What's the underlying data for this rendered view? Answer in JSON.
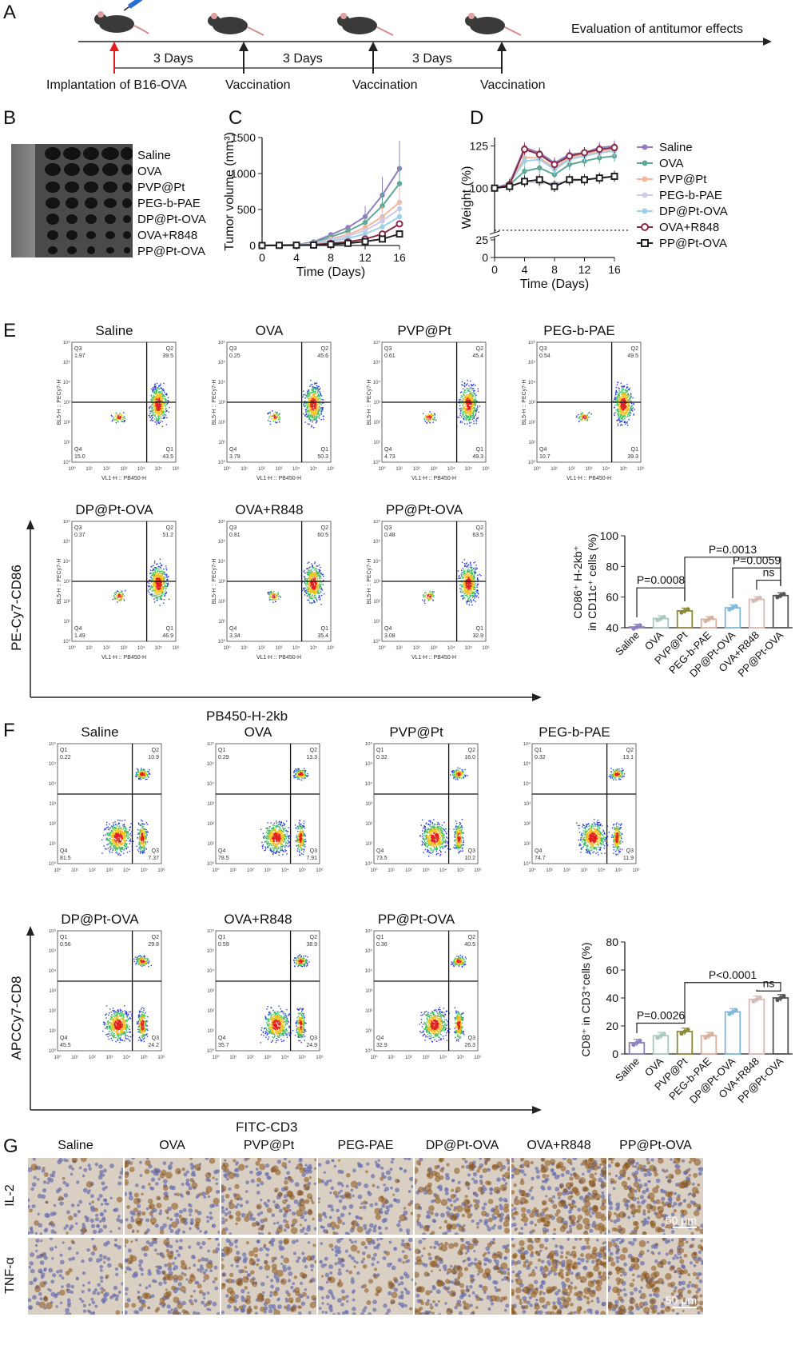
{
  "panels": {
    "A": {
      "label": "A",
      "timeline": {
        "intervals": [
          "3 Days",
          "3 Days",
          "3 Days"
        ],
        "events": [
          "Implantation of B16-OVA",
          "Vaccination",
          "Vaccination",
          "Vaccination"
        ],
        "end_label": "Evaluation of antitumor effects"
      }
    },
    "B": {
      "label": "B",
      "groups": [
        "Saline",
        "OVA",
        "PVP@Pt",
        "PEG-b-PAE",
        "DP@Pt-OVA",
        "OVA+R848",
        "PP@Pt-OVA"
      ]
    },
    "C": {
      "label": "C"
    },
    "D": {
      "label": "D"
    },
    "E": {
      "label": "E",
      "ylabel": "PE-Cy7-CD86",
      "xlabel": "PB450-H-2kb",
      "plot_x_axis": "VL1-H :: PB450-H",
      "plot_y_axis": "BL5-H :: PECy7-H",
      "plots": [
        {
          "title": "Saline",
          "q1": "43.5",
          "q2": "39.5",
          "q3": "1.97",
          "q4": "15.0"
        },
        {
          "title": "OVA",
          "q1": "50.3",
          "q2": "45.6",
          "q3": "0.25",
          "q4": "3.79"
        },
        {
          "title": "PVP@Pt",
          "q1": "49.3",
          "q2": "45.4",
          "q3": "0.61",
          "q4": "4.73"
        },
        {
          "title": "PEG-b-PAE",
          "q1": "39.3",
          "q2": "49.5",
          "q3": "0.54",
          "q4": "10.7"
        },
        {
          "title": "DP@Pt-OVA",
          "q1": "46.9",
          "q2": "51.2",
          "q3": "0.37",
          "q4": "1.49"
        },
        {
          "title": "OVA+R848",
          "q1": "35.4",
          "q2": "60.5",
          "q3": "0.81",
          "q4": "3.34"
        },
        {
          "title": "PP@Pt-OVA",
          "q1": "32.9",
          "q2": "63.5",
          "q3": "0.48",
          "q4": "3.08"
        }
      ]
    },
    "F": {
      "label": "F",
      "ylabel": "APCCy7-CD8",
      "xlabel": "FITC-CD3",
      "plots": [
        {
          "title": "Saline",
          "q1": "0.22",
          "q2": "10.9",
          "q3": "7.37",
          "q4": "81.5"
        },
        {
          "title": "OVA",
          "q1": "0.29",
          "q2": "13.3",
          "q3": "7.91",
          "q4": "78.5"
        },
        {
          "title": "PVP@Pt",
          "q1": "0.32",
          "q2": "16.0",
          "q3": "10.2",
          "q4": "73.5"
        },
        {
          "title": "PEG-b-PAE",
          "q1": "0.32",
          "q2": "13.1",
          "q3": "11.9",
          "q4": "74.7"
        },
        {
          "title": "DP@Pt-OVA",
          "q1": "0.56",
          "q2": "29.8",
          "q3": "24.2",
          "q4": "45.5"
        },
        {
          "title": "OVA+R848",
          "q1": "0.59",
          "q2": "38.9",
          "q3": "24.9",
          "q4": "35.7"
        },
        {
          "title": "PP@Pt-OVA",
          "q1": "0.36",
          "q2": "40.5",
          "q3": "26.3",
          "q4": "32.9"
        }
      ]
    },
    "G": {
      "label": "G",
      "columns": [
        "Saline",
        "OVA",
        "PVP@Pt",
        "PEG-PAE",
        "DP@Pt-OVA",
        "OVA+R848",
        "PP@Pt-OVA"
      ],
      "rows": [
        "IL-2",
        "TNF-α"
      ],
      "scale_bar": "50 μm"
    }
  },
  "chart_data": [
    {
      "type": "line",
      "id": "C",
      "xlabel": "Time (Days)",
      "ylabel": "Tumor volume (mm³)",
      "xlim": [
        0,
        16
      ],
      "ylim": [
        0,
        1500
      ],
      "xticks": [
        "0",
        "4",
        "8",
        "12",
        "16"
      ],
      "yticks": [
        "0",
        "500",
        "1000",
        "1500"
      ],
      "x": [
        0,
        2,
        4,
        6,
        8,
        10,
        12,
        14,
        16
      ],
      "series": [
        {
          "name": "Saline",
          "color": "#8f7fbf",
          "values": [
            0,
            5,
            10,
            50,
            150,
            250,
            400,
            700,
            1070
          ]
        },
        {
          "name": "OVA",
          "color": "#5fa898",
          "values": [
            0,
            5,
            10,
            40,
            120,
            200,
            320,
            550,
            860
          ]
        },
        {
          "name": "PVP@Pt",
          "color": "#f2b79a",
          "values": [
            0,
            5,
            8,
            30,
            90,
            150,
            250,
            400,
            600
          ]
        },
        {
          "name": "PEG-b-PAE",
          "color": "#cccce8",
          "values": [
            0,
            4,
            8,
            25,
            80,
            130,
            210,
            340,
            510
          ]
        },
        {
          "name": "DP@Pt-OVA",
          "color": "#9fd0e8",
          "values": [
            0,
            4,
            7,
            20,
            60,
            100,
            160,
            260,
            400
          ]
        },
        {
          "name": "OVA+R848",
          "color": "#8a2a4a",
          "values": [
            0,
            3,
            5,
            10,
            30,
            50,
            90,
            160,
            300
          ]
        },
        {
          "name": "PP@Pt-OVA",
          "color": "#222222",
          "values": [
            0,
            2,
            4,
            6,
            15,
            30,
            55,
            90,
            160
          ]
        }
      ]
    },
    {
      "type": "line",
      "id": "D",
      "xlabel": "Time (Days)",
      "ylabel": "Weight (%)",
      "xlim": [
        0,
        16
      ],
      "yticks": [
        "0",
        "25",
        "100",
        "125"
      ],
      "xticks": [
        "0",
        "4",
        "8",
        "12",
        "16"
      ],
      "x": [
        0,
        2,
        4,
        6,
        8,
        10,
        12,
        14,
        16
      ],
      "reference_line": 75,
      "series": [
        {
          "name": "Saline",
          "color": "#8f7fbf",
          "values": [
            100,
            103,
            124,
            121,
            115,
            120,
            121,
            124,
            125
          ]
        },
        {
          "name": "OVA",
          "color": "#5fa898",
          "values": [
            100,
            102,
            110,
            112,
            108,
            114,
            116,
            118,
            119
          ]
        },
        {
          "name": "PVP@Pt",
          "color": "#f2b79a",
          "values": [
            100,
            103,
            118,
            118,
            112,
            118,
            120,
            122,
            123
          ]
        },
        {
          "name": "PEG-b-PAE",
          "color": "#cccce8",
          "values": [
            100,
            101,
            104,
            103,
            103,
            104,
            105,
            106,
            107
          ]
        },
        {
          "name": "DP@Pt-OVA",
          "color": "#9fd0e8",
          "values": [
            100,
            103,
            116,
            117,
            111,
            117,
            119,
            121,
            122
          ]
        },
        {
          "name": "OVA+R848",
          "color": "#8a2a4a",
          "values": [
            100,
            102,
            123,
            120,
            114,
            119,
            121,
            123,
            124
          ]
        },
        {
          "name": "PP@Pt-OVA",
          "color": "#222222",
          "values": [
            100,
            101,
            104,
            105,
            101,
            105,
            105,
            106,
            107
          ]
        }
      ]
    },
    {
      "type": "bar",
      "id": "E-bar",
      "ylabel_line1": "CD86⁺ H-2kb⁺",
      "ylabel_line2": "in CD11c⁺ cells (%)",
      "ylim": [
        40,
        100
      ],
      "yticks": [
        "40",
        "60",
        "80",
        "100"
      ],
      "categories": [
        "Saline",
        "OVA",
        "PVP@Pt",
        "PEG-b-PAE",
        "DP@Pt-OVA",
        "OVA+R848",
        "PP@Pt-OVA"
      ],
      "values": [
        40.5,
        46,
        51,
        45.5,
        53,
        58.5,
        61
      ],
      "colors": [
        "#8f7fbf",
        "#a8c8c0",
        "#8a8a3a",
        "#d8b0a0",
        "#7fb8d8",
        "#d9b8b8",
        "#555555"
      ],
      "annotations": [
        {
          "text": "P=0.0008",
          "from": 0,
          "to": 2
        },
        {
          "text": "P=0.0013",
          "from": 2,
          "to": 6
        },
        {
          "text": "P=0.0059",
          "from": 4,
          "to": 6
        },
        {
          "text": "ns",
          "from": 5,
          "to": 6
        }
      ]
    },
    {
      "type": "bar",
      "id": "F-bar",
      "ylabel": "CD8⁺ in CD3⁺cells (%)",
      "ylim": [
        0,
        80
      ],
      "yticks": [
        "0",
        "20",
        "40",
        "60",
        "80"
      ],
      "categories": [
        "Saline",
        "OVA",
        "PVP@Pt",
        "PEG-b-PAE",
        "DP@Pt-OVA",
        "OVA+R848",
        "PP@Pt-OVA"
      ],
      "values": [
        8,
        13,
        16,
        13,
        30,
        39,
        40
      ],
      "colors": [
        "#8f7fbf",
        "#a8c8c0",
        "#8a8a3a",
        "#d8b0a0",
        "#7fb8d8",
        "#d9b8b8",
        "#555555"
      ],
      "annotations": [
        {
          "text": "P=0.0026",
          "from": 0,
          "to": 2
        },
        {
          "text": "P<0.0001",
          "from": 2,
          "to": 6
        },
        {
          "text": "ns",
          "from": 5,
          "to": 6
        }
      ]
    }
  ]
}
